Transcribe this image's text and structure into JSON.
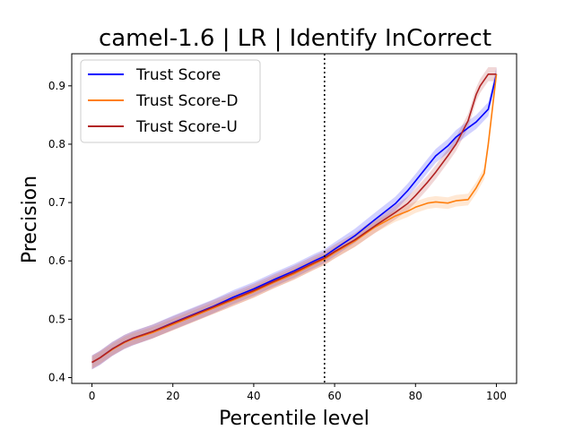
{
  "chart_data": {
    "type": "line",
    "title": "camel-1.6 | LR | Identify InCorrect",
    "xlabel": "Percentile level",
    "ylabel": "Precision",
    "xlim": [
      -5,
      105
    ],
    "ylim": [
      0.39,
      0.955
    ],
    "xticks": [
      0,
      20,
      40,
      60,
      80,
      100
    ],
    "yticks": [
      0.4,
      0.5,
      0.6,
      0.7,
      0.8,
      0.9
    ],
    "grid": false,
    "legend_position": "top-left",
    "vline": {
      "x": 57.5,
      "style": "dotted",
      "color": "#000000"
    },
    "series": [
      {
        "name": "Trust Score",
        "color": "#0000ff",
        "band": 0.012,
        "x": [
          0,
          2,
          5,
          8,
          10,
          15,
          20,
          25,
          30,
          35,
          40,
          45,
          50,
          55,
          57.5,
          60,
          65,
          70,
          75,
          78,
          80,
          83,
          85,
          88,
          90,
          93,
          95,
          98,
          100
        ],
        "y": [
          0.426,
          0.434,
          0.449,
          0.461,
          0.467,
          0.479,
          0.494,
          0.508,
          0.522,
          0.538,
          0.552,
          0.568,
          0.583,
          0.6,
          0.608,
          0.62,
          0.643,
          0.671,
          0.698,
          0.72,
          0.737,
          0.763,
          0.78,
          0.797,
          0.812,
          0.828,
          0.838,
          0.86,
          0.92
        ]
      },
      {
        "name": "Trust Score-D",
        "color": "#ff7f0e",
        "band": 0.01,
        "x": [
          0,
          2,
          5,
          8,
          10,
          15,
          20,
          25,
          30,
          35,
          40,
          45,
          50,
          55,
          57.5,
          60,
          65,
          70,
          75,
          78,
          80,
          83,
          85,
          88,
          90,
          93,
          95,
          97,
          98,
          100
        ],
        "y": [
          0.426,
          0.434,
          0.448,
          0.46,
          0.466,
          0.477,
          0.491,
          0.505,
          0.519,
          0.533,
          0.547,
          0.563,
          0.578,
          0.595,
          0.603,
          0.614,
          0.634,
          0.658,
          0.677,
          0.685,
          0.692,
          0.699,
          0.701,
          0.699,
          0.703,
          0.705,
          0.725,
          0.75,
          0.8,
          0.92
        ]
      },
      {
        "name": "Trust Score-U",
        "color": "#b22222",
        "band": 0.012,
        "x": [
          0,
          2,
          5,
          8,
          10,
          15,
          20,
          25,
          30,
          35,
          40,
          45,
          50,
          55,
          57.5,
          60,
          65,
          70,
          75,
          78,
          80,
          83,
          85,
          88,
          90,
          93,
          95,
          96,
          98,
          100
        ],
        "y": [
          0.426,
          0.434,
          0.449,
          0.461,
          0.467,
          0.479,
          0.493,
          0.507,
          0.521,
          0.535,
          0.549,
          0.565,
          0.58,
          0.597,
          0.605,
          0.616,
          0.636,
          0.66,
          0.683,
          0.698,
          0.712,
          0.735,
          0.752,
          0.78,
          0.8,
          0.84,
          0.885,
          0.9,
          0.92,
          0.92
        ]
      }
    ]
  }
}
